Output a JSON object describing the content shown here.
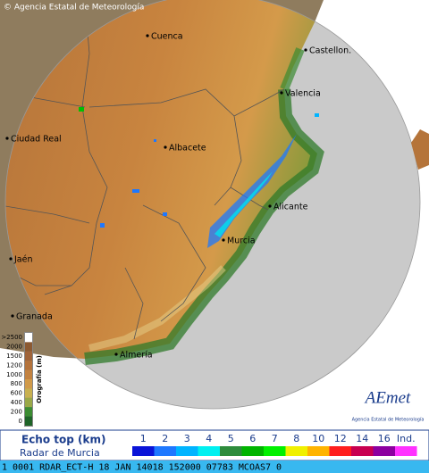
{
  "copyright": "© Agencia Estatal de Meteorología",
  "cities": [
    {
      "label": "Cuenca"
    },
    {
      "label": "Castellon."
    },
    {
      "label": "Valencia"
    },
    {
      "label": "Ciudad Real"
    },
    {
      "label": "Albacete"
    },
    {
      "label": "Alicante"
    },
    {
      "label": "Murcia"
    },
    {
      "label": "Jaén"
    },
    {
      "label": "Granada"
    },
    {
      "label": "Almería"
    }
  ],
  "orography": {
    "title": "Orografía (m)",
    "labels": [
      ">2500",
      "2000",
      "1500",
      "1200",
      "1000",
      "800",
      "600",
      "400",
      "200",
      "0"
    ]
  },
  "logo": {
    "name": "AEmet",
    "subtitle": "Agencia Estatal de Meteorología"
  },
  "legend": {
    "title": "Echo top (km)",
    "subtitle": "Radar de Murcia",
    "items": [
      {
        "label": 1,
        "color": "#0a14d8"
      },
      {
        "label": 2,
        "color": "#1e78ff"
      },
      {
        "label": 3,
        "color": "#00b4ff"
      },
      {
        "label": 4,
        "color": "#00f0f0"
      },
      {
        "label": 5,
        "color": "#2d8c3c"
      },
      {
        "label": 6,
        "color": "#00b400"
      },
      {
        "label": 7,
        "color": "#00f000"
      },
      {
        "label": 8,
        "color": "#f0f000"
      },
      {
        "label": 10,
        "color": "#ffb400"
      },
      {
        "label": 12,
        "color": "#ff1e1e"
      },
      {
        "label": 14,
        "color": "#c80050"
      },
      {
        "label": 16,
        "color": "#8c00a0"
      },
      {
        "label": "Ind.",
        "color": "#ff32ff"
      }
    ]
  },
  "status": "1 0001 RDAR_ECT-H   18 JAN 14018 152000 07783 MCOAS7 0"
}
